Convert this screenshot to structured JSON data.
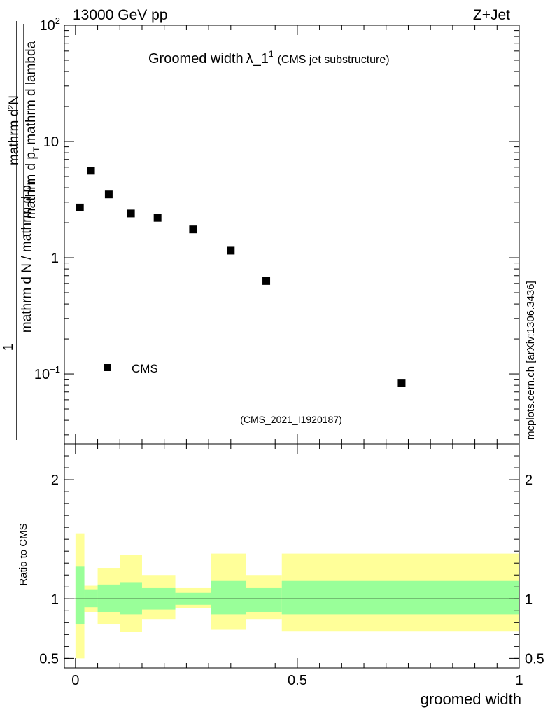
{
  "header": {
    "energy_label": "13000 GeV pp",
    "process_label": "Z+Jet"
  },
  "side_label": "mcplots.cern.ch [arXiv:1306.3436]",
  "chart_data": {
    "type": "scatter",
    "title_main": "Groomed width",
    "title_symbol": "λ_1",
    "title_sup": "1",
    "title_sub": "(CMS jet substructure)",
    "analysis_label": "(CMS_2021_I1920187)",
    "xlabel": "groomed width",
    "ylabel_numerator": "1",
    "ylabel_denominator_part1": "mathrm d N / mathrm d p",
    "ylabel_denominator_sub1": "T",
    "ylabel_numerator_main": "mathrm d",
    "ylabel_numerator_sup": "2",
    "ylabel_numerator_N": "N",
    "ylabel_den2_part1": "mathrm d p",
    "ylabel_den2_sub": "T",
    "ylabel_den2_part2": "mathrm d lambda",
    "yscale": "log",
    "ylim": [
      0.025,
      100
    ],
    "xlim": [
      -0.025,
      1.0
    ],
    "x_ticks": [
      {
        "value": 0,
        "label": "0"
      },
      {
        "value": 0.5,
        "label": "0.5"
      },
      {
        "value": 1,
        "label": "1"
      }
    ],
    "y_ticks": [
      {
        "value": 0.1,
        "base": "10",
        "exp": "−1"
      },
      {
        "value": 1,
        "base": "1",
        "exp": ""
      },
      {
        "value": 10,
        "base": "10",
        "exp": ""
      },
      {
        "value": 100,
        "base": "10",
        "exp": "2"
      }
    ],
    "legend": [
      {
        "name": "CMS",
        "marker": "square",
        "color": "#000000"
      }
    ],
    "series": [
      {
        "name": "CMS",
        "points": [
          {
            "x": 0.01,
            "y": 2.7
          },
          {
            "x": 0.035,
            "y": 5.6
          },
          {
            "x": 0.075,
            "y": 3.5
          },
          {
            "x": 0.125,
            "y": 2.4
          },
          {
            "x": 0.185,
            "y": 2.2
          },
          {
            "x": 0.265,
            "y": 1.75
          },
          {
            "x": 0.35,
            "y": 1.15
          },
          {
            "x": 0.43,
            "y": 0.63
          },
          {
            "x": 0.735,
            "y": 0.084
          }
        ]
      }
    ],
    "ratio": {
      "ylabel": "Ratio to CMS",
      "ylim": [
        0.42,
        2.3
      ],
      "y_ticks": [
        {
          "value": 0.5,
          "label": "0.5"
        },
        {
          "value": 1,
          "label": "1"
        },
        {
          "value": 2,
          "label": "2"
        }
      ],
      "reference_line": 1.0,
      "bins": [
        {
          "x0": 0.0,
          "x1": 0.02,
          "stat_lo": 0.79,
          "stat_hi": 1.27,
          "tot_lo": 0.5,
          "tot_hi": 1.55
        },
        {
          "x0": 0.02,
          "x1": 0.05,
          "stat_lo": 0.93,
          "stat_hi": 1.08,
          "tot_lo": 0.89,
          "tot_hi": 1.11
        },
        {
          "x0": 0.05,
          "x1": 0.1,
          "stat_lo": 0.89,
          "stat_hi": 1.12,
          "tot_lo": 0.79,
          "tot_hi": 1.26
        },
        {
          "x0": 0.1,
          "x1": 0.15,
          "stat_lo": 0.87,
          "stat_hi": 1.14,
          "tot_lo": 0.72,
          "tot_hi": 1.37
        },
        {
          "x0": 0.15,
          "x1": 0.225,
          "stat_lo": 0.91,
          "stat_hi": 1.09,
          "tot_lo": 0.83,
          "tot_hi": 1.2
        },
        {
          "x0": 0.225,
          "x1": 0.305,
          "stat_lo": 0.95,
          "stat_hi": 1.05,
          "tot_lo": 0.92,
          "tot_hi": 1.09
        },
        {
          "x0": 0.305,
          "x1": 0.385,
          "stat_lo": 0.87,
          "stat_hi": 1.15,
          "tot_lo": 0.74,
          "tot_hi": 1.38
        },
        {
          "x0": 0.385,
          "x1": 0.465,
          "stat_lo": 0.89,
          "stat_hi": 1.09,
          "tot_lo": 0.83,
          "tot_hi": 1.2
        },
        {
          "x0": 0.465,
          "x1": 1.0,
          "stat_lo": 0.87,
          "stat_hi": 1.15,
          "tot_lo": 0.73,
          "tot_hi": 1.38
        }
      ],
      "stat_color": "#99ff99",
      "total_color": "#ffff99"
    }
  }
}
